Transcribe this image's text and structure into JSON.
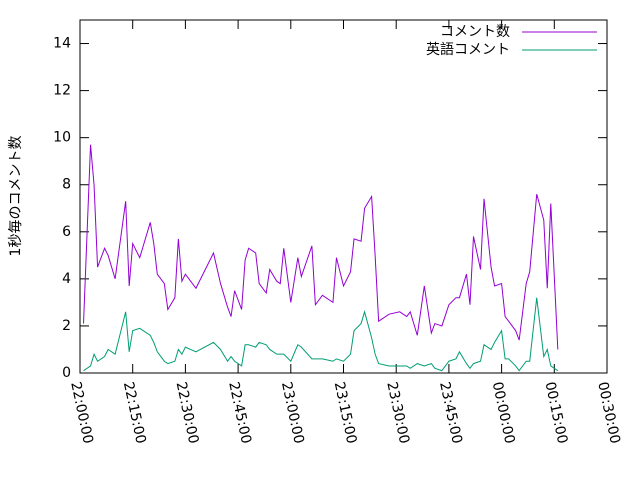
{
  "chart_data": {
    "type": "line",
    "ylabel": "1秒毎のコメント数",
    "x": [
      "22:01:00",
      "22:03:00",
      "22:04:00",
      "22:05:00",
      "22:07:00",
      "22:08:00",
      "22:10:00",
      "22:13:00",
      "22:14:00",
      "22:15:00",
      "22:17:00",
      "22:20:00",
      "22:21:00",
      "22:22:00",
      "22:24:00",
      "22:25:00",
      "22:27:00",
      "22:28:00",
      "22:29:00",
      "22:30:00",
      "22:33:00",
      "22:38:00",
      "22:40:00",
      "22:42:00",
      "22:43:00",
      "22:44:00",
      "22:46:00",
      "22:47:00",
      "22:48:00",
      "22:50:00",
      "22:51:00",
      "22:53:00",
      "22:54:00",
      "22:56:00",
      "22:57:00",
      "22:58:00",
      "23:00:00",
      "23:02:00",
      "23:03:00",
      "23:06:00",
      "23:07:00",
      "23:09:00",
      "23:12:00",
      "23:13:00",
      "23:15:00",
      "23:17:00",
      "23:18:00",
      "23:20:00",
      "23:21:00",
      "23:23:00",
      "23:24:00",
      "23:25:00",
      "23:28:00",
      "23:31:00",
      "23:33:00",
      "23:34:00",
      "23:36:00",
      "23:38:00",
      "23:40:00",
      "23:41:00",
      "23:43:00",
      "23:45:00",
      "23:47:00",
      "23:48:00",
      "23:50:00",
      "23:51:00",
      "23:52:00",
      "23:54:00",
      "23:55:00",
      "23:57:00",
      "23:58:00",
      "00:00:00",
      "00:01:00",
      "00:02:00",
      "00:04:00",
      "00:05:00",
      "00:07:00",
      "00:08:00",
      "00:10:00",
      "00:12:00",
      "00:13:00",
      "00:14:00",
      "00:16:00"
    ],
    "series": [
      {
        "name": "コメント数",
        "color": "#9400d3",
        "values": [
          2.1,
          9.7,
          8,
          4.5,
          5.3,
          5,
          4,
          7.3,
          3.7,
          5.5,
          4.9,
          6.4,
          5.5,
          4.2,
          3.8,
          2.7,
          3.2,
          5.7,
          3.9,
          4.2,
          3.6,
          5.1,
          3.8,
          2.8,
          2.4,
          3.5,
          2.7,
          4.8,
          5.3,
          5.1,
          3.8,
          3.4,
          4.4,
          3.9,
          3.8,
          5.3,
          3.0,
          4.9,
          4.1,
          5.4,
          2.9,
          3.3,
          3.0,
          4.9,
          3.7,
          4.3,
          5.7,
          5.6,
          7.0,
          7.5,
          5.0,
          2.2,
          2.5,
          2.6,
          2.4,
          2.6,
          1.6,
          3.7,
          1.7,
          2.1,
          2.0,
          2.9,
          3.2,
          3.2,
          4.2,
          2.9,
          5.8,
          4.4,
          7.4,
          4.5,
          3.7,
          3.8,
          2.4,
          2.2,
          1.8,
          1.4,
          3.8,
          4.3,
          7.6,
          6.5,
          3.6,
          7.2,
          1.0
        ]
      },
      {
        "name": "英語コメント",
        "color": "#009e73",
        "values": [
          0.1,
          0.3,
          0.8,
          0.5,
          0.7,
          1.0,
          0.8,
          2.6,
          0.9,
          1.8,
          1.9,
          1.6,
          1.3,
          0.9,
          0.5,
          0.4,
          0.5,
          1.0,
          0.8,
          1.1,
          0.9,
          1.3,
          1.0,
          0.5,
          0.7,
          0.5,
          0.3,
          1.2,
          1.2,
          1.1,
          1.3,
          1.2,
          1.0,
          0.8,
          0.8,
          0.8,
          0.5,
          1.2,
          1.1,
          0.6,
          0.6,
          0.6,
          0.5,
          0.6,
          0.5,
          0.8,
          1.8,
          2.1,
          2.6,
          1.5,
          0.8,
          0.4,
          0.3,
          0.3,
          0.3,
          0.2,
          0.4,
          0.3,
          0.4,
          0.2,
          0.1,
          0.5,
          0.6,
          0.9,
          0.4,
          0.2,
          0.4,
          0.5,
          1.2,
          1.0,
          1.3,
          1.8,
          0.6,
          0.6,
          0.3,
          0.1,
          0.5,
          0.5,
          3.2,
          0.7,
          1.0,
          0.3,
          0.1
        ]
      }
    ],
    "xlim": [
      "22:00:00",
      "00:30:00"
    ],
    "xticks": [
      "22:00:00",
      "22:15:00",
      "22:30:00",
      "22:45:00",
      "23:00:00",
      "23:15:00",
      "23:30:00",
      "23:45:00",
      "00:00:00",
      "00:15:00",
      "00:30:00"
    ],
    "ylim": [
      0,
      15
    ],
    "yticks": [
      0,
      2,
      4,
      6,
      8,
      10,
      12,
      14
    ],
    "legend": "top-right"
  }
}
